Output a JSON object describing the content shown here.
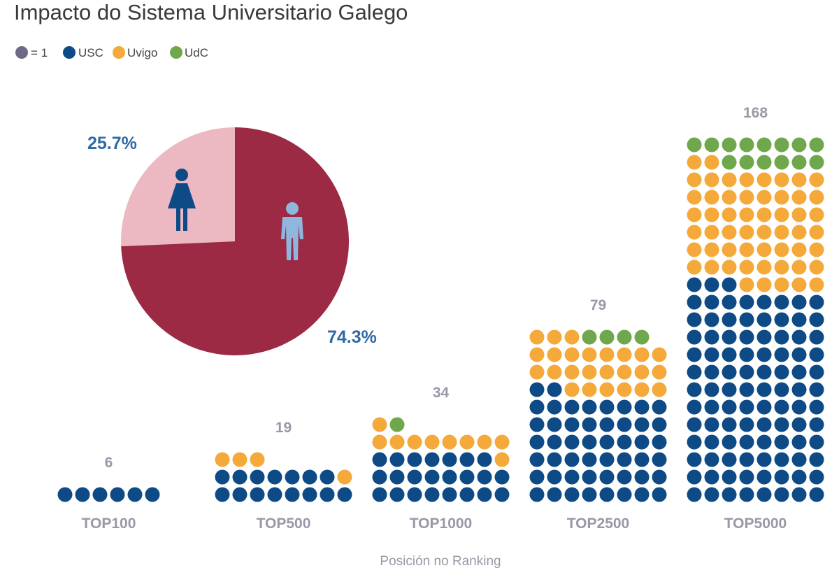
{
  "chart_data": {
    "type": "waffle",
    "title": "Impacto do Sistema Universitario Galego",
    "legend": {
      "unit_label": "= 1",
      "entries": [
        "USC",
        "Uvigo",
        "UdC"
      ]
    },
    "xlabel": "Posición no Ranking",
    "categories": [
      "TOP100",
      "TOP500",
      "TOP1000",
      "TOP2500",
      "TOP5000"
    ],
    "totals": [
      "6",
      "19",
      "34",
      "79",
      "168"
    ],
    "series": [
      {
        "name": "USC",
        "color": "#0d4a86",
        "values": [
          6,
          15,
          23,
          50,
          99
        ]
      },
      {
        "name": "Uvigo",
        "color": "#f4a93a",
        "values": [
          0,
          4,
          10,
          25,
          55
        ]
      },
      {
        "name": "UdC",
        "color": "#6fa84c",
        "values": [
          0,
          0,
          1,
          4,
          14
        ]
      }
    ],
    "dots_per_row": 8,
    "unit_color": "#6e6a85",
    "pie": {
      "slices": [
        {
          "name": "women",
          "value": 25.7,
          "label": "25.7%",
          "color": "#ecb9c3"
        },
        {
          "name": "men",
          "value": 74.3,
          "label": "74.3%",
          "color": "#9c2a45"
        }
      ]
    }
  }
}
